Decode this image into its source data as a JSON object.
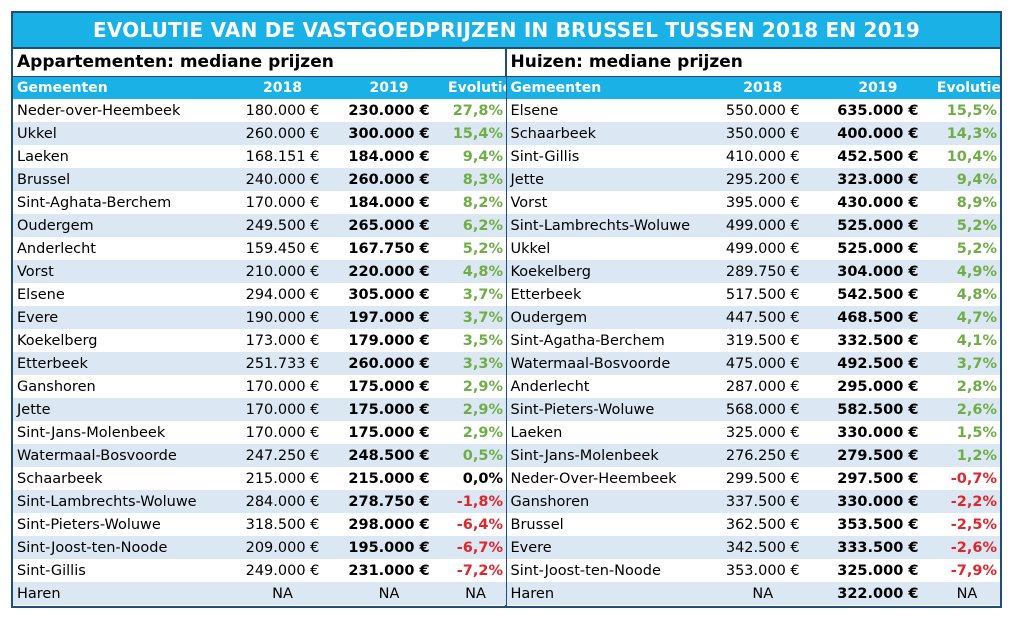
{
  "title": "EVOLUTIE VAN DE VASTGOEDPRIJZEN IN BRUSSEL TUSSEN 2018 EN 2019",
  "colors": {
    "header_bg": "#1ab2e6",
    "positive": "#70ad47",
    "negative": "#e0262d",
    "stripe": "#dbe8f4"
  },
  "apartments": {
    "section_title": "Appartementen: mediane prijzen",
    "headers": [
      "Gemeenten",
      "2018",
      "2019",
      "Evolutie"
    ],
    "rows": [
      [
        "Neder-over-Heembeek",
        "180.000 €",
        "230.000 €",
        "27,8%"
      ],
      [
        "Ukkel",
        "260.000 €",
        "300.000 €",
        "15,4%"
      ],
      [
        "Laeken",
        "168.151 €",
        "184.000 €",
        "9,4%"
      ],
      [
        "Brussel",
        "240.000 €",
        "260.000 €",
        "8,3%"
      ],
      [
        "Sint-Aghata-Berchem",
        "170.000 €",
        "184.000 €",
        "8,2%"
      ],
      [
        "Oudergem",
        "249.500 €",
        "265.000 €",
        "6,2%"
      ],
      [
        "Anderlecht",
        "159.450 €",
        "167.750 €",
        "5,2%"
      ],
      [
        "Vorst",
        "210.000 €",
        "220.000 €",
        "4,8%"
      ],
      [
        "Elsene",
        "294.000 €",
        "305.000 €",
        "3,7%"
      ],
      [
        "Evere",
        "190.000 €",
        "197.000 €",
        "3,7%"
      ],
      [
        "Koekelberg",
        "173.000 €",
        "179.000 €",
        "3,5%"
      ],
      [
        "Etterbeek",
        "251.733 €",
        "260.000 €",
        "3,3%"
      ],
      [
        "Ganshoren",
        "170.000 €",
        "175.000 €",
        "2,9%"
      ],
      [
        "Jette",
        "170.000 €",
        "175.000 €",
        "2,9%"
      ],
      [
        "Sint-Jans-Molenbeek",
        "170.000 €",
        "175.000 €",
        "2,9%"
      ],
      [
        "Watermaal-Bosvoorde",
        "247.250 €",
        "248.500 €",
        "0,5%"
      ],
      [
        "Schaarbeek",
        "215.000 €",
        "215.000 €",
        "0,0%"
      ],
      [
        "Sint-Lambrechts-Woluwe",
        "284.000 €",
        "278.750 €",
        "-1,8%"
      ],
      [
        "Sint-Pieters-Woluwe",
        "318.500 €",
        "298.000 €",
        "-6,4%"
      ],
      [
        "Sint-Joost-ten-Noode",
        "209.000 €",
        "195.000 €",
        "-6,7%"
      ],
      [
        "Sint-Gillis",
        "249.000 €",
        "231.000 €",
        "-7,2%"
      ],
      [
        "Haren",
        "NA",
        "NA",
        "NA"
      ]
    ]
  },
  "houses": {
    "section_title": "Huizen: mediane prijzen",
    "headers": [
      "Gemeenten",
      "2018",
      "2019",
      "Evolutie"
    ],
    "rows": [
      [
        "Elsene",
        "550.000 €",
        "635.000 €",
        "15,5%"
      ],
      [
        "Schaarbeek",
        "350.000 €",
        "400.000 €",
        "14,3%"
      ],
      [
        "Sint-Gillis",
        "410.000 €",
        "452.500 €",
        "10,4%"
      ],
      [
        "Jette",
        "295.200 €",
        "323.000 €",
        "9,4%"
      ],
      [
        "Vorst",
        "395.000 €",
        "430.000 €",
        "8,9%"
      ],
      [
        "Sint-Lambrechts-Woluwe",
        "499.000 €",
        "525.000 €",
        "5,2%"
      ],
      [
        "Ukkel",
        "499.000 €",
        "525.000 €",
        "5,2%"
      ],
      [
        "Koekelberg",
        "289.750 €",
        "304.000 €",
        "4,9%"
      ],
      [
        "Etterbeek",
        "517.500 €",
        "542.500 €",
        "4,8%"
      ],
      [
        "Oudergem",
        "447.500 €",
        "468.500 €",
        "4,7%"
      ],
      [
        "Sint-Agatha-Berchem",
        "319.500 €",
        "332.500 €",
        "4,1%"
      ],
      [
        "Watermaal-Bosvoorde",
        "475.000 €",
        "492.500 €",
        "3,7%"
      ],
      [
        "Anderlecht",
        "287.000 €",
        "295.000 €",
        "2,8%"
      ],
      [
        "Sint-Pieters-Woluwe",
        "568.000 €",
        "582.500 €",
        "2,6%"
      ],
      [
        "Laeken",
        "325.000 €",
        "330.000 €",
        "1,5%"
      ],
      [
        "Sint-Jans-Molenbeek",
        "276.250 €",
        "279.500 €",
        "1,2%"
      ],
      [
        "Neder-Over-Heembeek",
        "299.500 €",
        "297.500 €",
        "-0,7%"
      ],
      [
        "Ganshoren",
        "337.500 €",
        "330.000 €",
        "-2,2%"
      ],
      [
        "Brussel",
        "362.500 €",
        "353.500 €",
        "-2,5%"
      ],
      [
        "Evere",
        "342.500 €",
        "333.500 €",
        "-2,6%"
      ],
      [
        "Sint-Joost-ten-Noode",
        "353.000 €",
        "325.000 €",
        "-7,9%"
      ],
      [
        "Haren",
        "NA",
        "322.000 €",
        "NA"
      ]
    ]
  }
}
